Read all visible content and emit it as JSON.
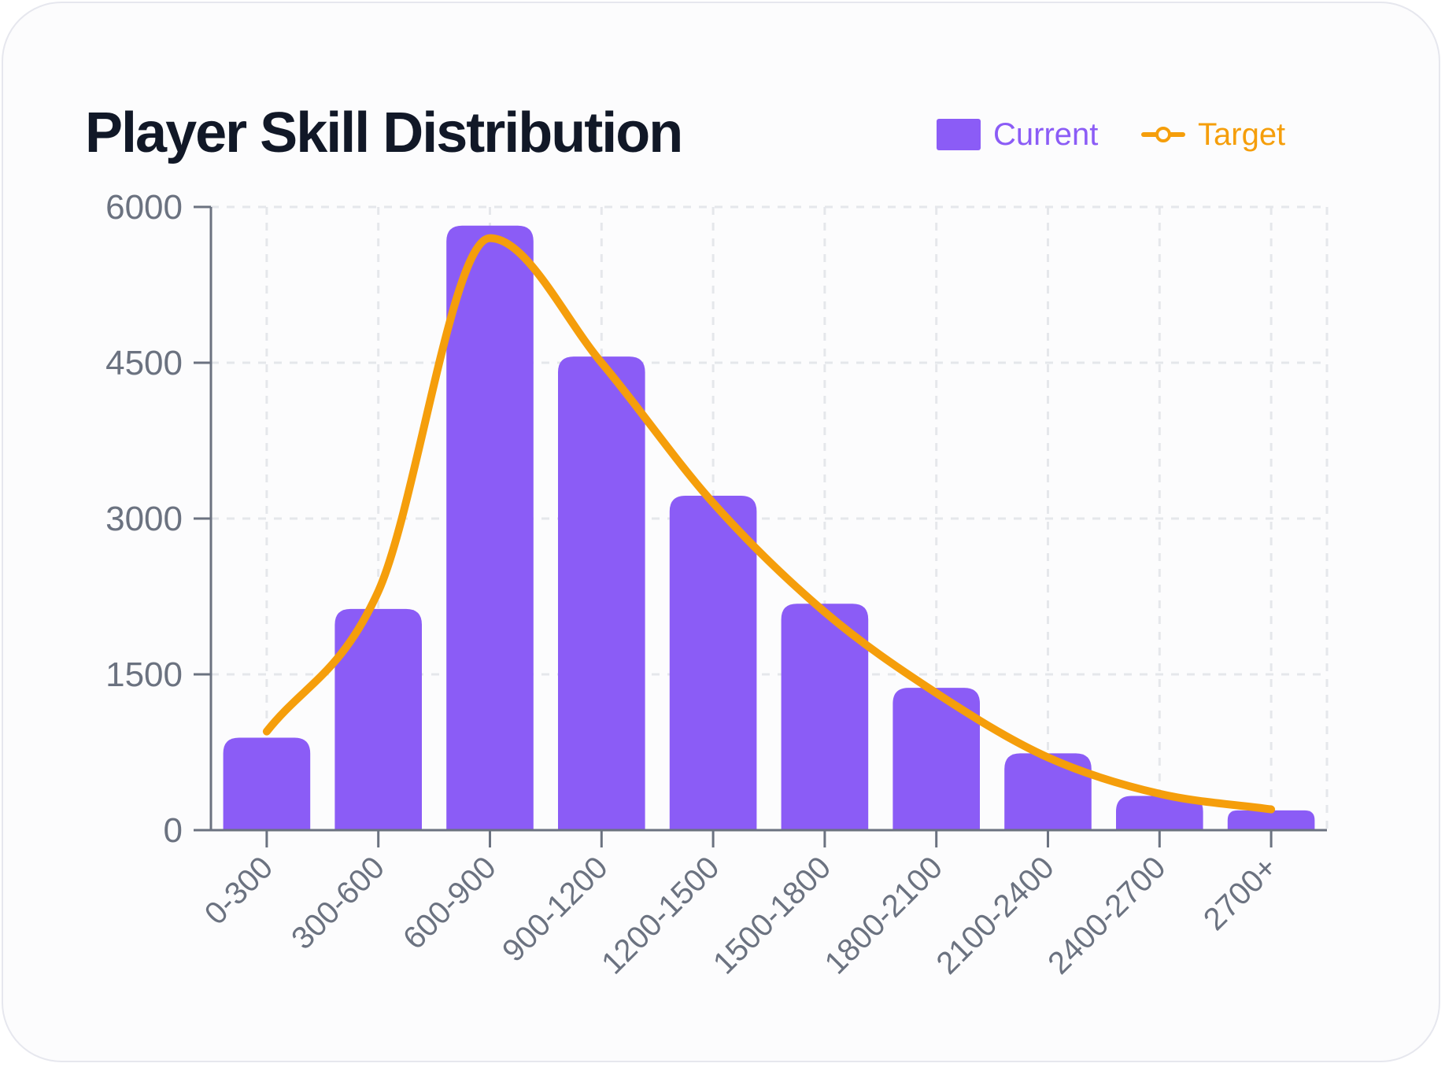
{
  "chart_data": {
    "type": "bar",
    "title": "Player Skill Distribution",
    "xlabel": "",
    "ylabel": "",
    "categories": [
      "0-300",
      "300-600",
      "600-900",
      "900-1200",
      "1200-1500",
      "1500-1800",
      "1800-2100",
      "2100-2400",
      "2400-2700",
      "2700+"
    ],
    "series": [
      {
        "name": "Current",
        "kind": "bar",
        "values": [
          890,
          2130,
          5820,
          4560,
          3220,
          2180,
          1370,
          740,
          330,
          190
        ]
      },
      {
        "name": "Target",
        "kind": "line",
        "smooth": true,
        "values": [
          950,
          2300,
          5700,
          4500,
          3150,
          2100,
          1320,
          700,
          350,
          200
        ]
      }
    ],
    "ylim": [
      0,
      6000
    ],
    "yticks": [
      "0",
      "1500",
      "3000",
      "4500",
      "6000"
    ],
    "grid": true,
    "legend_position": "top-right"
  },
  "colors": {
    "current": "#8b5cf6",
    "target": "#f59e0b",
    "axis": "#6b7280",
    "grid": "#e5e7eb",
    "title": "#111827"
  }
}
